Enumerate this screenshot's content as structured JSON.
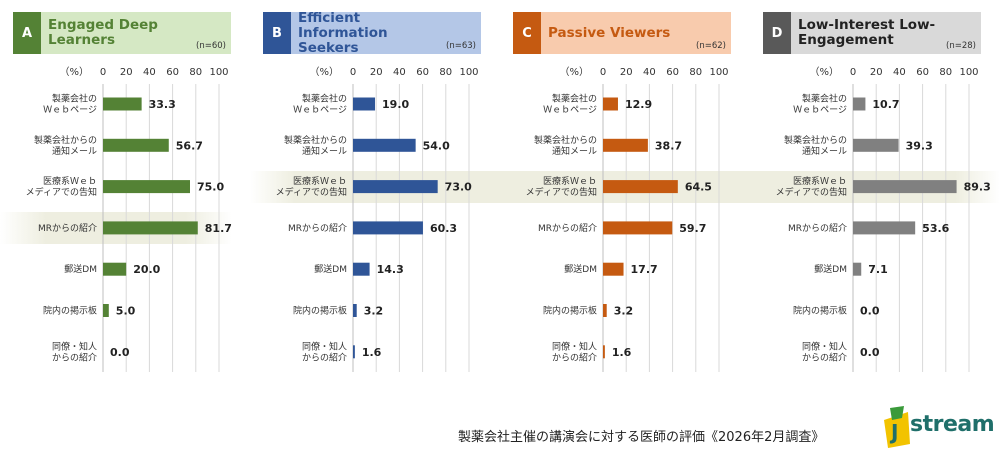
{
  "unit_label": "（%）",
  "footer": "製薬会社主催の講演会に対する医師の評価《2026年2月調査》",
  "logo": {
    "text": "stream",
    "mark": "J"
  },
  "colors": {
    "highlight": "#eeeee0"
  },
  "chart_data": [
    {
      "type": "bar",
      "letter": "A",
      "title": "Engaged Deep Learners",
      "n_label": "(n=60)",
      "header_bg": "#d5e8c4",
      "letter_bg": "#548235",
      "bar_color": "#548235",
      "highlight_index": 3,
      "categories": [
        "製薬会社の\nＷｅｂページ",
        "製薬会社からの\n通知メール",
        "医療系Ｗｅｂ\nメディアでの告知",
        "MRからの紹介",
        "郵送DM",
        "院内の掲示板",
        "同僚・知人\nからの紹介"
      ],
      "values": [
        33.3,
        56.7,
        75.0,
        81.7,
        20.0,
        5.0,
        0.0
      ],
      "value_labels": [
        "33.3",
        "56.7",
        "75.0",
        "81.7",
        "20.0",
        "5.0",
        "0.0"
      ],
      "xticks": [
        "0",
        "20",
        "40",
        "60",
        "80",
        "100"
      ],
      "xlim": [
        0,
        100
      ]
    },
    {
      "type": "bar",
      "letter": "B",
      "title": "Efficient Information Seekers",
      "n_label": "(n=63)",
      "header_bg": "#b4c7e7",
      "letter_bg": "#2f5597",
      "bar_color": "#2f5597",
      "highlight_index": 2,
      "categories": [
        "製薬会社の\nＷｅｂページ",
        "製薬会社からの\n通知メール",
        "医療系Ｗｅｂ\nメディアでの告知",
        "MRからの紹介",
        "郵送DM",
        "院内の掲示板",
        "同僚・知人\nからの紹介"
      ],
      "values": [
        19.0,
        54.0,
        73.0,
        60.3,
        14.3,
        3.2,
        1.6
      ],
      "value_labels": [
        "19.0",
        "54.0",
        "73.0",
        "60.3",
        "14.3",
        "3.2",
        "1.6"
      ],
      "xticks": [
        "0",
        "20",
        "40",
        "60",
        "80",
        "100"
      ],
      "xlim": [
        0,
        100
      ]
    },
    {
      "type": "bar",
      "letter": "C",
      "title": "Passive Viewers",
      "n_label": "(n=62)",
      "header_bg": "#f8cbad",
      "letter_bg": "#c55a11",
      "bar_color": "#c55a11",
      "highlight_index": 2,
      "categories": [
        "製薬会社の\nＷｅｂページ",
        "製薬会社からの\n通知メール",
        "医療系Ｗｅｂ\nメディアでの告知",
        "MRからの紹介",
        "郵送DM",
        "院内の掲示板",
        "同僚・知人\nからの紹介"
      ],
      "values": [
        12.9,
        38.7,
        64.5,
        59.7,
        17.7,
        3.2,
        1.6
      ],
      "value_labels": [
        "12.9",
        "38.7",
        "64.5",
        "59.7",
        "17.7",
        "3.2",
        "1.6"
      ],
      "xticks": [
        "0",
        "20",
        "40",
        "60",
        "80",
        "100"
      ],
      "xlim": [
        0,
        100
      ]
    },
    {
      "type": "bar",
      "letter": "D",
      "title": "Low-Interest Low-Engagement",
      "n_label": "(n=28)",
      "header_bg": "#d9d9d9",
      "letter_bg": "#595959",
      "bar_color": "#808080",
      "highlight_index": 2,
      "categories": [
        "製薬会社の\nＷｅｂページ",
        "製薬会社からの\n通知メール",
        "医療系Ｗｅｂ\nメディアでの告知",
        "MRからの紹介",
        "郵送DM",
        "院内の掲示板",
        "同僚・知人\nからの紹介"
      ],
      "values": [
        10.7,
        39.3,
        89.3,
        53.6,
        7.1,
        0.0,
        0.0
      ],
      "value_labels": [
        "10.7",
        "39.3",
        "89.3",
        "53.6",
        "7.1",
        "0.0",
        "0.0"
      ],
      "xticks": [
        "0",
        "20",
        "40",
        "60",
        "80",
        "100"
      ],
      "xlim": [
        0,
        100
      ]
    }
  ]
}
